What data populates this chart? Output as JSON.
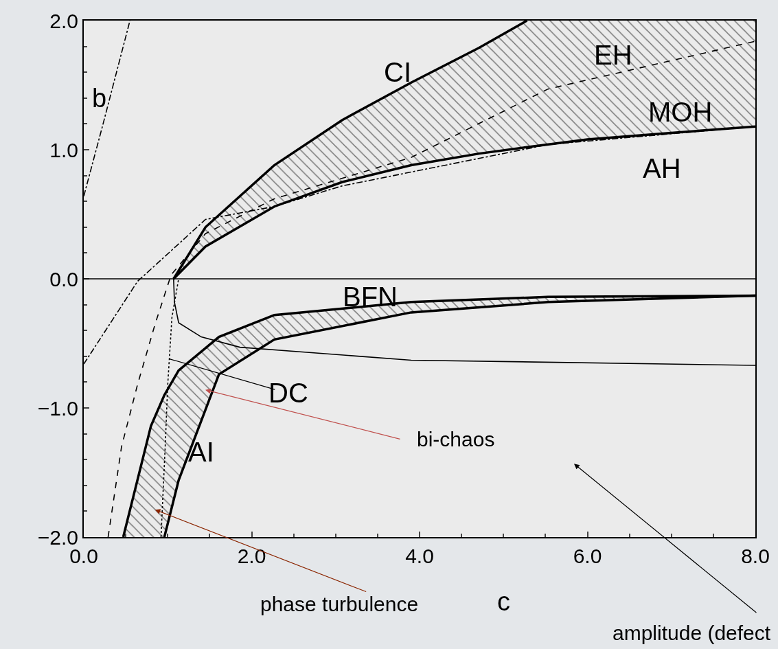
{
  "chart_data": {
    "type": "line",
    "xlabel": "c",
    "ylabel": "b",
    "xlim": [
      0,
      8
    ],
    "ylim": [
      -2,
      2
    ],
    "xticks": [
      {
        "value": 0,
        "label": "0.0"
      },
      {
        "value": 2,
        "label": "2.0"
      },
      {
        "value": 4,
        "label": "4.0"
      },
      {
        "value": 6,
        "label": "6.0"
      },
      {
        "value": 8,
        "label": "8.0"
      }
    ],
    "yticks": [
      {
        "value": -2,
        "label": "−2.0"
      },
      {
        "value": -1,
        "label": "−1.0"
      },
      {
        "value": 0,
        "label": "0.0"
      },
      {
        "value": 1,
        "label": "1.0"
      },
      {
        "value": 2,
        "label": "2.0"
      }
    ],
    "grid": false,
    "series": [
      {
        "color": "#000000",
        "line_style": "solid",
        "x": [
          1.07,
          1.45,
          2.27,
          3.08,
          3.9,
          4.71,
          5.28,
          6.0,
          7.0,
          8.0
        ],
        "values": [
          0,
          0.4,
          0.88,
          1.23,
          1.52,
          1.79,
          2.0,
          null,
          null,
          null
        ],
        "lower": [
          0,
          0.25,
          0.56,
          0.75,
          0.88,
          0.97,
          1.02,
          1.08,
          1.13,
          1.18
        ],
        "upper": [
          0,
          0.4,
          0.88,
          1.23,
          1.52,
          1.79,
          2.0,
          2.0,
          2.0,
          2.0
        ]
      },
      {
        "color": "#000000",
        "line_style": "solid",
        "x": [
          1.07,
          1.45,
          2.27,
          3.08,
          3.9,
          4.71,
          5.28,
          6.0,
          7.0,
          8.0
        ],
        "values": [
          0,
          0.25,
          0.56,
          0.75,
          0.88,
          0.97,
          1.02,
          1.08,
          1.13,
          1.18
        ]
      },
      {
        "color": "#000000",
        "line_style": "solid",
        "x": [
          0.47,
          0.8,
          0.96,
          1.13,
          1.61,
          2.27,
          3.9,
          5.53,
          8.0
        ],
        "values": [
          -2,
          -1.14,
          -0.9,
          -0.71,
          -0.45,
          -0.28,
          -0.18,
          -0.14,
          -0.13
        ],
        "lower": [
          -2,
          -2,
          -2,
          -1.56,
          -0.74,
          -0.47,
          -0.26,
          -0.18,
          -0.13
        ],
        "upper": [
          -2,
          -1.14,
          -0.9,
          -0.71,
          -0.45,
          -0.28,
          -0.18,
          -0.14,
          -0.13
        ]
      },
      {
        "color": "#000000",
        "line_style": "solid",
        "x": [
          0.96,
          1.13,
          1.61,
          2.27,
          3.9,
          5.53,
          8.0
        ],
        "values": [
          -2,
          -1.56,
          -0.74,
          -0.47,
          -0.26,
          -0.18,
          -0.13
        ]
      },
      {
        "color": "#000000",
        "line_style": "solid",
        "x": [
          1.07,
          1.08,
          1.13,
          1.4,
          1.86,
          3.9,
          8.0
        ],
        "values": [
          0,
          -0.18,
          -0.34,
          -0.45,
          -0.53,
          -0.63,
          -0.67
        ]
      },
      {
        "color": "#000000",
        "line_style": "dashed",
        "x": [
          0.29,
          0.45,
          0.64,
          0.85,
          1.04,
          1.45,
          2.27,
          3.9,
          5.53,
          8.0
        ],
        "values": [
          -2,
          -1.3,
          -0.82,
          -0.35,
          0.03,
          0.35,
          0.62,
          0.94,
          1.47,
          1.84
        ]
      },
      {
        "color": "#000000",
        "line_style": "dashdot",
        "x": [
          0,
          0.64,
          1.45,
          2.27,
          3.08,
          5.53,
          8.0
        ],
        "values": [
          -0.66,
          -0.02,
          0.46,
          0.56,
          0.72,
          1.04,
          1.18
        ]
      },
      {
        "color": "#000000",
        "line_style": "dashdot",
        "x": [
          0,
          0.23,
          0.55
        ],
        "values": [
          0.64,
          1.2,
          2.0
        ]
      },
      {
        "color": "#000000",
        "line_style": "dotted",
        "x": [
          0.92,
          0.97,
          1.0,
          1.05,
          1.13
        ],
        "values": [
          -2,
          -1.3,
          -0.82,
          -0.3,
          0
        ]
      }
    ],
    "ref_lines": [
      {
        "axis": "y",
        "value": 0,
        "color": "#000000",
        "line_style": "solid"
      }
    ],
    "annotations": [
      "CI",
      "EH",
      "MOH",
      "AH",
      "BFN",
      "AI",
      {
        "text": "DC",
        "x": 1.02,
        "y": -0.62
      },
      "bi-chaos",
      "phase turbulence",
      "amplitude (defect"
    ]
  }
}
